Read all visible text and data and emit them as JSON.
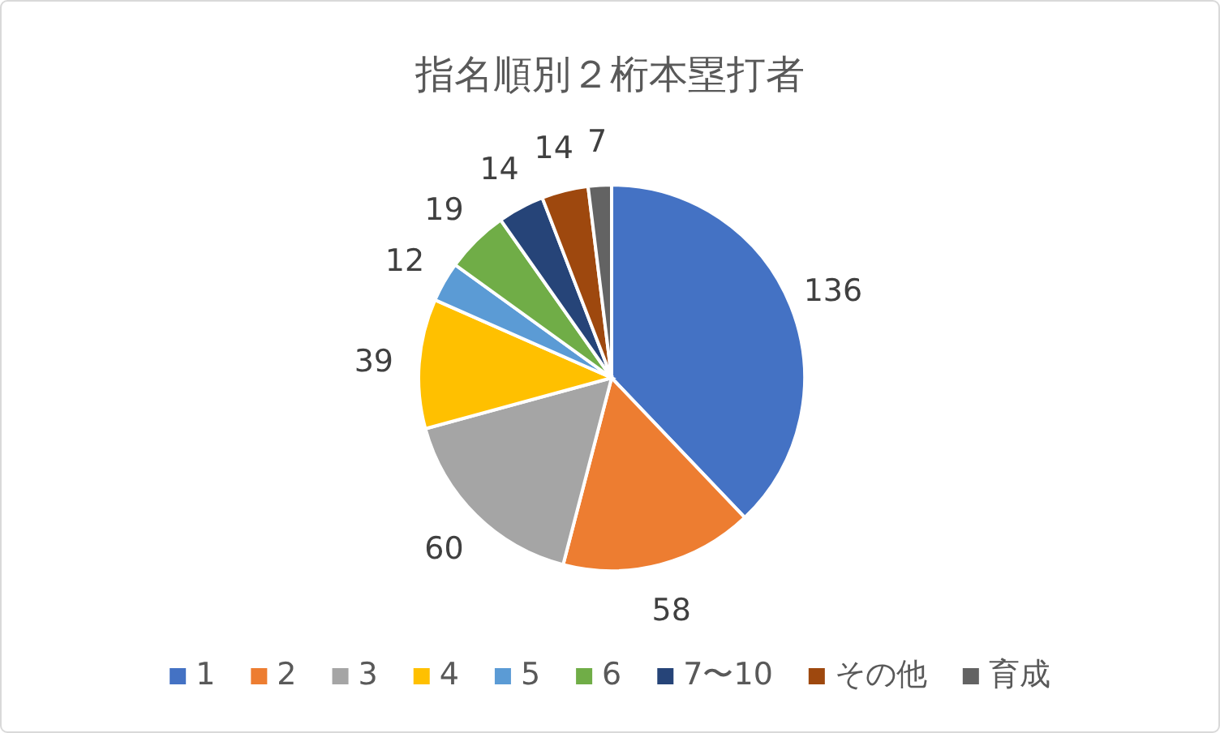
{
  "chart_data": {
    "type": "pie",
    "title": "指名順別２桁本塁打者",
    "categories": [
      "1",
      "2",
      "3",
      "4",
      "5",
      "6",
      "7〜10",
      "その他",
      "育成"
    ],
    "values": [
      136,
      58,
      60,
      39,
      12,
      19,
      14,
      14,
      7
    ],
    "colors": [
      "#4472c4",
      "#ed7d31",
      "#a5a5a5",
      "#ffc000",
      "#5b9bd5",
      "#70ad47",
      "#264478",
      "#9e480e",
      "#636363"
    ],
    "data_labels": true,
    "legend": "bottom"
  }
}
